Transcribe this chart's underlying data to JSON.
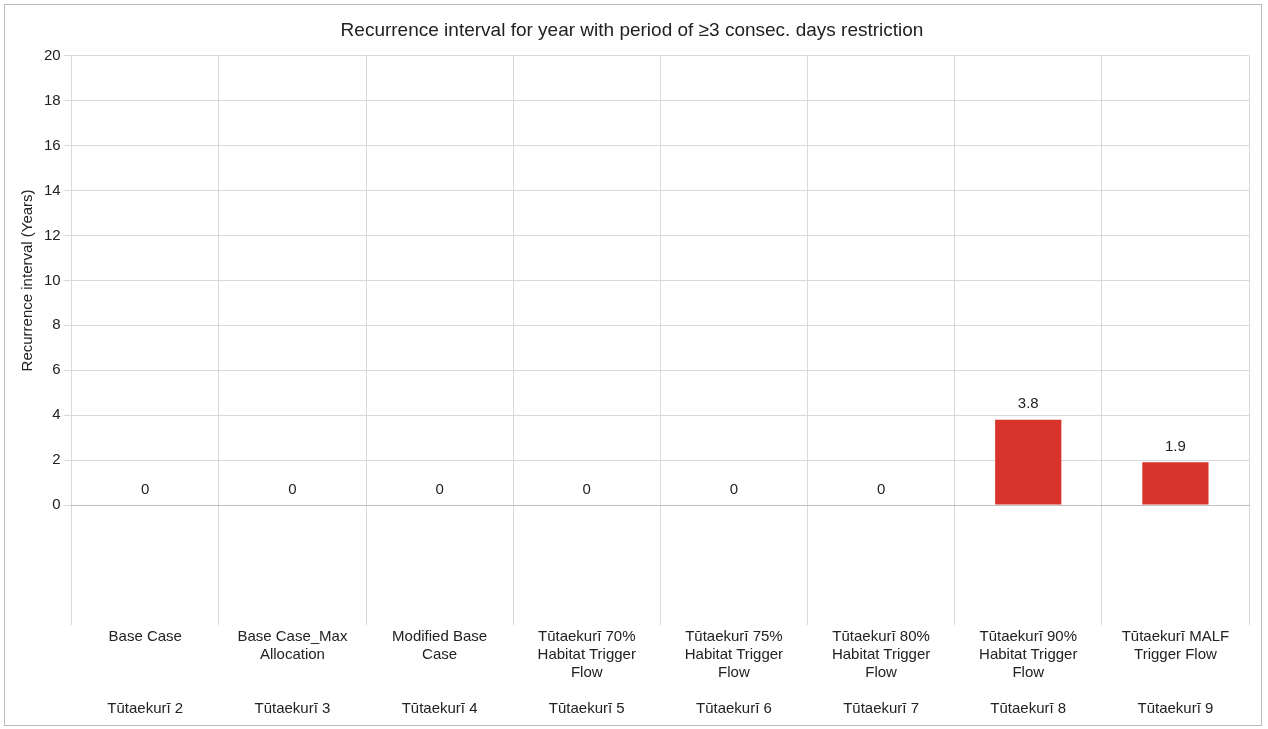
{
  "chart_data": {
    "type": "bar",
    "title": "Recurrence interval for year with period of ≥3 consec. days restriction",
    "ylabel": "Recurrence interval (Years)",
    "categories": [
      "Base Case\nTūtaekurī 2",
      "Base Case_Max Allocation\nTūtaekurī 3",
      "Modified Base Case\nTūtaekurī 4",
      "Tūtaekurī 70% Habitat Trigger Flow\nTūtaekurī 5",
      "Tūtaekurī 75% Habitat Trigger Flow\nTūtaekurī 6",
      "Tūtaekurī 80% Habitat Trigger Flow\nTūtaekurī 7",
      "Tūtaekurī 90% Habitat Trigger Flow\nTūtaekurī 8",
      "Tūtaekurī MALF Trigger Flow\nTūtaekurī 9"
    ],
    "values": [
      0,
      0,
      0,
      0,
      0,
      0,
      3.8,
      1.9
    ],
    "color": "#d9342b",
    "ylim": [
      0,
      20
    ],
    "yticks": [
      0,
      2,
      4,
      6,
      8,
      10,
      12,
      14,
      16,
      18,
      20
    ],
    "grid": true,
    "data_labels": true
  }
}
